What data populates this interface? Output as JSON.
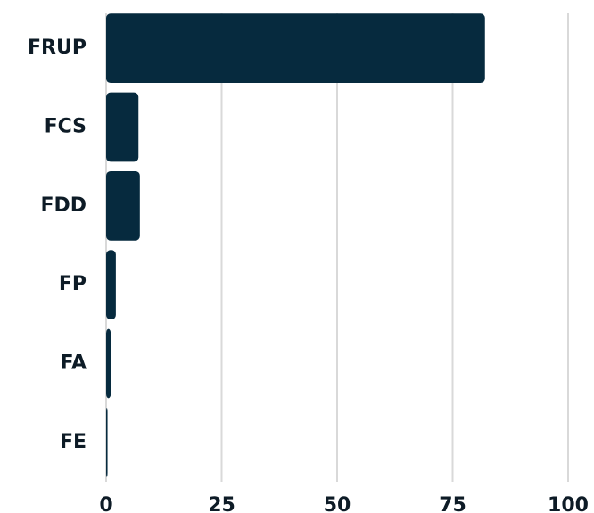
{
  "chart_data": {
    "type": "bar",
    "orientation": "horizontal",
    "categories": [
      "FRUP",
      "FCS",
      "FDD",
      "FP",
      "FA",
      "FE"
    ],
    "values": [
      82,
      7,
      7.3,
      2.1,
      1,
      0.3
    ],
    "color": "#062a3e",
    "xlim": [
      0,
      100
    ],
    "xticks": [
      0,
      25,
      50,
      75,
      100
    ],
    "grid": true
  }
}
